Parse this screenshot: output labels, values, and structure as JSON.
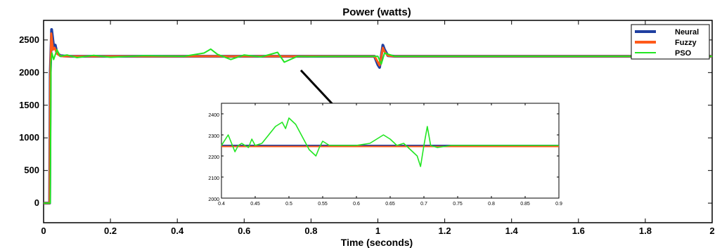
{
  "chart_data": [
    {
      "type": "line",
      "title": "Power (watts)",
      "xlabel": "Time (seconds)",
      "ylabel": "",
      "xlim": [
        0,
        2
      ],
      "ylim": [
        -300,
        2800
      ],
      "xticks": [
        "0",
        "0.2",
        "0.4",
        "0.6",
        "0.8",
        "1",
        "1.2",
        "1.4",
        "1.6",
        "1.8",
        "2"
      ],
      "yticks": [
        "0",
        "500",
        "1000",
        "1500",
        "2000",
        "2500"
      ],
      "legend_position": "top-right",
      "series": [
        {
          "name": "Neural",
          "color": "#1f3fa0",
          "x": [
            0,
            0.018,
            0.02,
            0.024,
            0.03,
            0.035,
            0.04,
            0.05,
            0.06,
            0.08,
            0.1,
            0.3,
            0.5,
            0.7,
            0.9,
            0.99,
            1.0,
            1.005,
            1.01,
            1.015,
            1.02,
            1.03,
            1.05,
            1.1,
            1.5,
            2.0
          ],
          "y": [
            0,
            0,
            2000,
            2660,
            2400,
            2420,
            2300,
            2260,
            2255,
            2250,
            2250,
            2250,
            2250,
            2250,
            2250,
            2250,
            2120,
            2080,
            2250,
            2420,
            2350,
            2260,
            2250,
            2250,
            2250,
            2250
          ]
        },
        {
          "name": "Fuzzy",
          "color": "#ff5a1a",
          "x": [
            0,
            0.018,
            0.02,
            0.023,
            0.028,
            0.033,
            0.04,
            0.05,
            0.06,
            0.08,
            0.1,
            0.3,
            0.5,
            0.7,
            0.9,
            0.99,
            1.0,
            1.005,
            1.01,
            1.015,
            1.02,
            1.03,
            1.05,
            1.1,
            1.5,
            2.0
          ],
          "y": [
            0,
            0,
            1900,
            2600,
            2350,
            2380,
            2290,
            2255,
            2250,
            2250,
            2250,
            2250,
            2250,
            2250,
            2250,
            2250,
            2160,
            2110,
            2240,
            2380,
            2320,
            2260,
            2250,
            2250,
            2250,
            2250
          ]
        },
        {
          "name": "PSO",
          "color": "#22e622",
          "x": [
            0,
            0.02,
            0.022,
            0.025,
            0.03,
            0.04,
            0.05,
            0.07,
            0.1,
            0.15,
            0.2,
            0.3,
            0.42,
            0.48,
            0.5,
            0.52,
            0.56,
            0.6,
            0.65,
            0.7,
            0.72,
            0.76,
            0.8,
            0.9,
            1.0,
            1.01,
            1.02,
            1.05,
            1.2,
            1.5,
            2.0
          ],
          "y": [
            0,
            0,
            2150,
            2300,
            2200,
            2350,
            2250,
            2270,
            2230,
            2265,
            2235,
            2260,
            2250,
            2300,
            2360,
            2280,
            2200,
            2270,
            2240,
            2310,
            2160,
            2250,
            2245,
            2250,
            2250,
            2130,
            2300,
            2250,
            2250,
            2250,
            2250
          ]
        }
      ]
    },
    {
      "type": "line",
      "title": "",
      "xlim": [
        0.4,
        0.9
      ],
      "ylim": [
        2000,
        2450
      ],
      "xticks": [
        "0.4",
        "0.45",
        "0.5",
        "0.55",
        "0.6",
        "0.65",
        "0.7",
        "0.75",
        "0.8",
        "0.85",
        "0.9"
      ],
      "yticks": [
        "2000",
        "2100",
        "2200",
        "2300",
        "2400"
      ],
      "series": [
        {
          "name": "Neural",
          "color": "#1f3fa0",
          "x": [
            0.4,
            0.9
          ],
          "y": [
            2250,
            2250
          ]
        },
        {
          "name": "Fuzzy",
          "color": "#ff5a1a",
          "x": [
            0.4,
            0.9
          ],
          "y": [
            2245,
            2245
          ]
        },
        {
          "name": "PSO",
          "color": "#22e622",
          "x": [
            0.4,
            0.41,
            0.415,
            0.42,
            0.425,
            0.43,
            0.44,
            0.445,
            0.45,
            0.46,
            0.47,
            0.48,
            0.49,
            0.495,
            0.5,
            0.51,
            0.52,
            0.53,
            0.54,
            0.545,
            0.55,
            0.56,
            0.58,
            0.6,
            0.62,
            0.63,
            0.64,
            0.65,
            0.66,
            0.67,
            0.68,
            0.69,
            0.695,
            0.7,
            0.705,
            0.71,
            0.72,
            0.74,
            0.9
          ],
          "y": [
            2250,
            2300,
            2260,
            2220,
            2250,
            2260,
            2240,
            2280,
            2250,
            2260,
            2300,
            2340,
            2360,
            2330,
            2380,
            2350,
            2290,
            2230,
            2200,
            2240,
            2270,
            2250,
            2250,
            2250,
            2260,
            2280,
            2300,
            2280,
            2250,
            2260,
            2230,
            2200,
            2150,
            2250,
            2340,
            2250,
            2240,
            2250,
            2250
          ]
        }
      ]
    }
  ],
  "legend": [
    "Neural",
    "Fuzzy",
    "PSO"
  ]
}
